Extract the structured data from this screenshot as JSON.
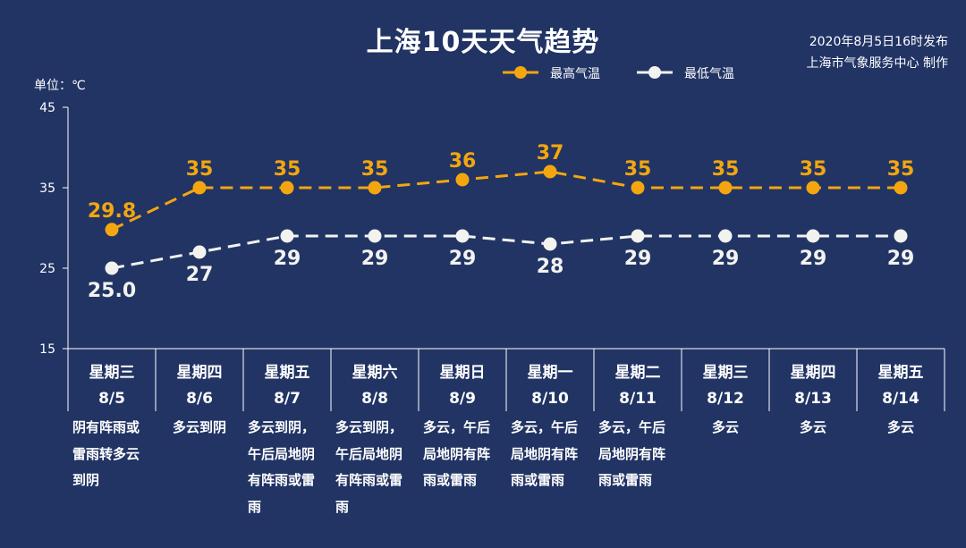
{
  "title": "上海10天天气趋势",
  "publish_time": "2020年8月5日16时发布",
  "issuer": "上海市气象服务中心 制作",
  "unit": "单位：℃",
  "colors": {
    "background": "#213464",
    "max": "#f3a60f",
    "min": "#f2f2ef"
  },
  "chart_data": {
    "type": "line",
    "categories": [
      "8/5",
      "8/6",
      "8/7",
      "8/8",
      "8/9",
      "8/10",
      "8/11",
      "8/12",
      "8/13",
      "8/14"
    ],
    "weekdays": [
      "星期三",
      "星期四",
      "星期五",
      "星期六",
      "星期日",
      "星期一",
      "星期二",
      "星期三",
      "星期四",
      "星期五"
    ],
    "ylim": [
      15,
      45
    ],
    "yticks": [
      15,
      25,
      35,
      45
    ],
    "legend_position": "top-right",
    "series": [
      {
        "name": "最高气温",
        "values": [
          29.8,
          35,
          35,
          35,
          36,
          37,
          35,
          35,
          35,
          35
        ],
        "labels": [
          "29.8",
          "35",
          "35",
          "35",
          "36",
          "37",
          "35",
          "35",
          "35",
          "35"
        ]
      },
      {
        "name": "最低气温",
        "values": [
          25.0,
          27,
          29,
          29,
          29,
          28,
          29,
          29,
          29,
          29
        ],
        "labels": [
          "25.0",
          "27",
          "29",
          "29",
          "29",
          "28",
          "29",
          "29",
          "29",
          "29"
        ]
      }
    ],
    "weather": [
      "阴有阵雨或雷雨转多云到阴",
      "多云到阴",
      "多云到阴，午后局地阴有阵雨或雷雨",
      "多云到阴，午后局地阴有阵雨或雷雨",
      "多云，午后局地阴有阵雨或雷雨",
      "多云，午后局地阴有阵雨或雷雨",
      "多云，午后局地阴有阵雨或雷雨",
      "多云",
      "多云",
      "多云"
    ]
  }
}
